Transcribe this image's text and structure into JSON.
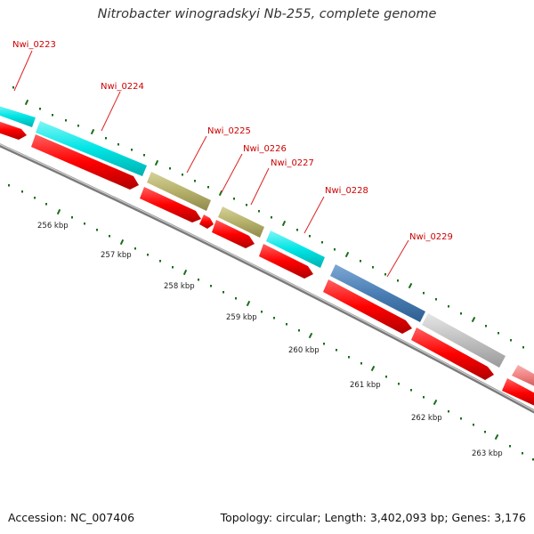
{
  "title": "Nitrobacter winogradskyi Nb-255, complete genome",
  "footer": {
    "accession": "Accession: NC_007406",
    "summary": "Topology: circular; Length: 3,402,093 bp; Genes: 3,176"
  },
  "colors": {
    "cds_strand": "#ff0000",
    "gene_label": "#cc0000",
    "backbone": "#808080",
    "tick": "#1a6e1a",
    "cyan_feature": "#00e5e5",
    "olive_feature": "#b5b06a",
    "blue_feature": "#4a7fb5",
    "grey_feature": "#c0c0c0",
    "pink_feature": "#f08080"
  },
  "gene_labels": [
    "Nwi_0223",
    "Nwi_0224",
    "Nwi_0225",
    "Nwi_0226",
    "Nwi_0227",
    "Nwi_0228",
    "Nwi_0229"
  ],
  "kbp_labels": [
    "256 kbp",
    "257 kbp",
    "258 kbp",
    "259 kbp",
    "260 kbp",
    "261 kbp",
    "262 kbp",
    "263 kbp"
  ]
}
